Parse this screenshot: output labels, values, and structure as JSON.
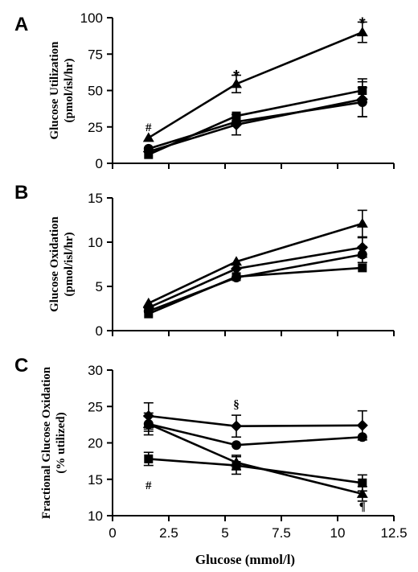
{
  "chart_data": [
    {
      "type": "line",
      "panel": "A",
      "ylabel_lines": [
        "Glucose Utilization",
        "(pmol/isl/hr)"
      ],
      "xlabel": "",
      "xlim": [
        0,
        12.5
      ],
      "ylim": [
        0,
        100
      ],
      "yticks": [
        "0",
        "25",
        "50",
        "75",
        "100"
      ],
      "xticks": [],
      "series": [
        {
          "marker": "triangle",
          "x": [
            1.6,
            5.5,
            11.1
          ],
          "y": [
            17.5,
            54.5,
            90
          ],
          "err": [
            0,
            6,
            7
          ]
        },
        {
          "marker": "square",
          "x": [
            1.6,
            5.5,
            11.1
          ],
          "y": [
            6,
            32.5,
            50
          ],
          "err": [
            0,
            0,
            8
          ]
        },
        {
          "marker": "diamond",
          "x": [
            1.6,
            5.5,
            11.1
          ],
          "y": [
            8,
            26.5,
            44
          ],
          "err": [
            0,
            7,
            12
          ]
        },
        {
          "marker": "circle",
          "x": [
            1.6,
            5.5,
            11.1
          ],
          "y": [
            10,
            28.5,
            42
          ],
          "err": [
            0,
            0,
            10
          ]
        }
      ],
      "annotations": [
        {
          "text": "#",
          "x": 1.6,
          "y": 25
        },
        {
          "text": "*",
          "x": 5.5,
          "y": 62
        },
        {
          "text": "*",
          "x": 11.1,
          "y": 98
        }
      ]
    },
    {
      "type": "line",
      "panel": "B",
      "ylabel_lines": [
        "Glucose Oxidation",
        "(pmol/isl/hr)"
      ],
      "xlabel": "",
      "xlim": [
        0,
        12.5
      ],
      "ylim": [
        0,
        15
      ],
      "yticks": [
        "0",
        "5",
        "10",
        "15"
      ],
      "xticks": [],
      "series": [
        {
          "marker": "triangle",
          "x": [
            1.6,
            5.5,
            11.1
          ],
          "y": [
            3.1,
            7.8,
            12.1
          ],
          "err": [
            0,
            0,
            1.5
          ]
        },
        {
          "marker": "diamond",
          "x": [
            1.6,
            5.5,
            11.1
          ],
          "y": [
            2.6,
            7.0,
            9.4
          ],
          "err": [
            0,
            0,
            1.1
          ]
        },
        {
          "marker": "circle",
          "x": [
            1.6,
            5.5,
            11.1
          ],
          "y": [
            2.2,
            6.0,
            8.6
          ],
          "err": [
            0,
            0,
            0.9
          ]
        },
        {
          "marker": "square",
          "x": [
            1.6,
            5.5,
            11.1
          ],
          "y": [
            1.9,
            6.1,
            7.1
          ],
          "err": [
            0,
            0,
            0
          ]
        }
      ],
      "annotations": []
    },
    {
      "type": "line",
      "panel": "C",
      "ylabel_lines": [
        "Fractional Glucose Oxidation",
        "(% utilized)"
      ],
      "xlabel": "Glucose (mmol/l)",
      "xlim": [
        0,
        12.5
      ],
      "ylim": [
        10,
        30
      ],
      "yticks": [
        "10",
        "15",
        "20",
        "25",
        "30"
      ],
      "xticks": [
        "0",
        "2.5",
        "5",
        "7.5",
        "10",
        "12.5"
      ],
      "series": [
        {
          "marker": "diamond",
          "x": [
            1.6,
            5.5,
            11.1
          ],
          "y": [
            23.7,
            22.3,
            22.4
          ],
          "err": [
            1.8,
            1.5,
            2.0
          ]
        },
        {
          "marker": "circle",
          "x": [
            1.6,
            5.5,
            11.1
          ],
          "y": [
            22.6,
            19.7,
            20.8
          ],
          "err": [
            1.5,
            0,
            0
          ]
        },
        {
          "marker": "triangle",
          "x": [
            1.6,
            5.5,
            11.1
          ],
          "y": [
            22.6,
            17.3,
            13.0
          ],
          "err": [
            1.0,
            1.0,
            1.0
          ]
        },
        {
          "marker": "square",
          "x": [
            1.6,
            5.5,
            11.1
          ],
          "y": [
            17.8,
            16.9,
            14.5
          ],
          "err": [
            0.9,
            1.2,
            1.1
          ]
        }
      ],
      "annotations": [
        {
          "text": "§",
          "x": 5.5,
          "y": 25.3
        },
        {
          "text": "#",
          "x": 1.6,
          "y": 14.2
        },
        {
          "text": "¶",
          "x": 11.1,
          "y": 11.3
        }
      ]
    }
  ]
}
